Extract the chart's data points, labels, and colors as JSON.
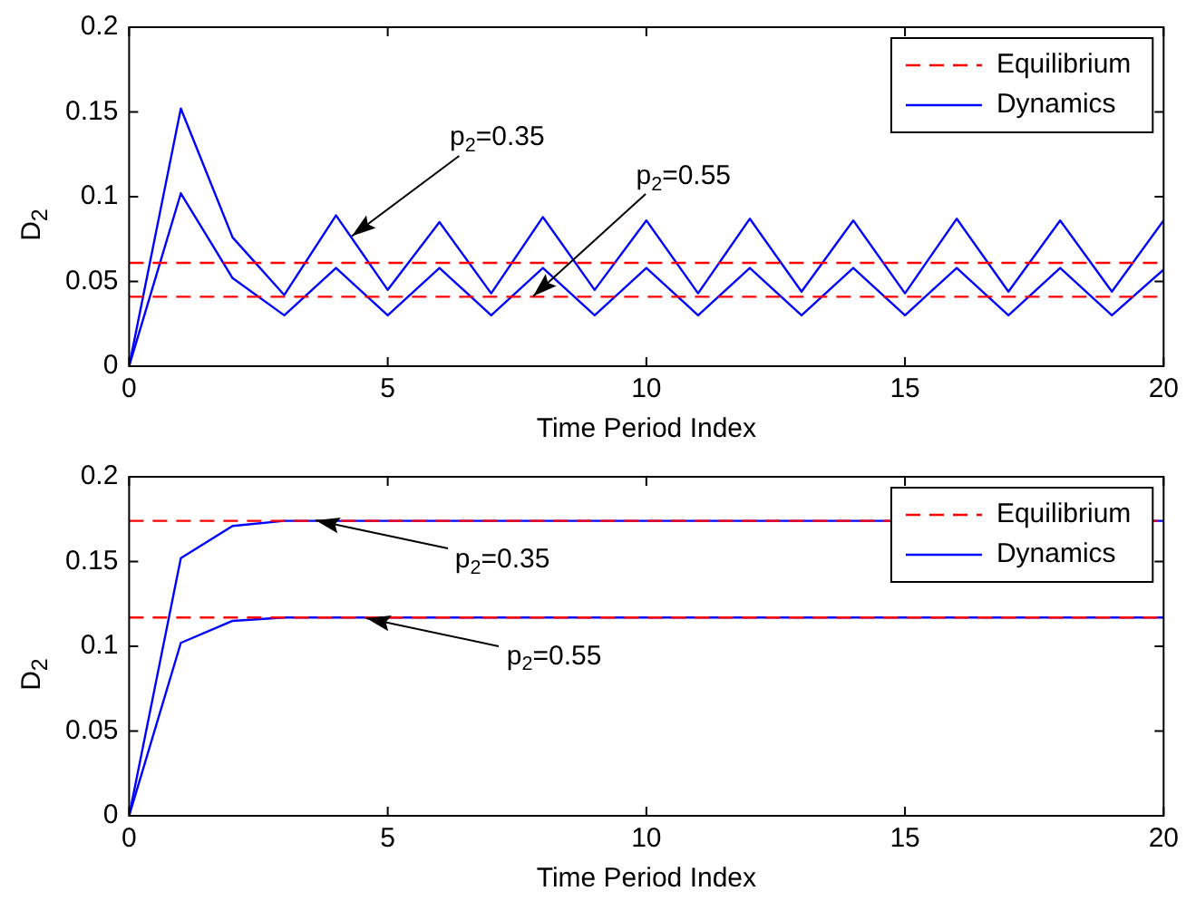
{
  "chart_data": [
    {
      "type": "line",
      "xlabel": "Time Period Index",
      "ylabel": "D$_{2}$",
      "xlim": [
        0,
        20
      ],
      "ylim": [
        0,
        0.2
      ],
      "xticks": [
        0,
        5,
        10,
        15,
        20
      ],
      "yticks": [
        0,
        0.05,
        0.1,
        0.15,
        0.2
      ],
      "grid": false,
      "legend": "top right",
      "marker": "none",
      "series": [
        {
          "name": "Equilibrium",
          "color": "#ff0000",
          "line_style": "dashed",
          "x": [
            0,
            20
          ],
          "values": [
            0.061,
            0.061
          ]
        },
        {
          "color": "#ff0000",
          "line_style": "dashed",
          "x": [
            0,
            20
          ],
          "values": [
            0.041,
            0.041
          ]
        },
        {
          "name": "Dynamics",
          "color": "#0000ff",
          "line_style": "solid",
          "x": [
            0,
            1,
            2,
            3,
            4,
            5,
            6,
            7,
            8,
            9,
            10,
            11,
            12,
            13,
            14,
            15,
            16,
            17,
            18,
            19,
            20
          ],
          "values": [
            0,
            0.152,
            0.076,
            0.042,
            0.089,
            0.045,
            0.085,
            0.043,
            0.088,
            0.045,
            0.086,
            0.043,
            0.087,
            0.044,
            0.086,
            0.043,
            0.087,
            0.044,
            0.086,
            0.044,
            0.086
          ]
        },
        {
          "color": "#0000ff",
          "line_style": "solid",
          "x": [
            0,
            1,
            2,
            3,
            4,
            5,
            6,
            7,
            8,
            9,
            10,
            11,
            12,
            13,
            14,
            15,
            16,
            17,
            18,
            19,
            20
          ],
          "values": [
            0,
            0.102,
            0.052,
            0.03,
            0.058,
            0.03,
            0.058,
            0.03,
            0.058,
            0.03,
            0.058,
            0.03,
            0.058,
            0.03,
            0.058,
            0.03,
            0.058,
            0.03,
            0.058,
            0.03,
            0.057
          ]
        }
      ],
      "annotations": [
        {
          "text": "p$_{2}$=0.35",
          "x": 4.3,
          "y": 0.077
        },
        {
          "text": "p$_{2}$=0.55",
          "x": 7.8,
          "y": 0.041
        }
      ]
    },
    {
      "type": "line",
      "xlabel": "Time Period Index",
      "ylabel": "D$_{2}$",
      "xlim": [
        0,
        20
      ],
      "ylim": [
        0,
        0.2
      ],
      "xticks": [
        0,
        5,
        10,
        15,
        20
      ],
      "yticks": [
        0,
        0.05,
        0.1,
        0.15,
        0.2
      ],
      "grid": false,
      "legend": "top right",
      "marker": "none",
      "series": [
        {
          "name": "Equilibrium",
          "color": "#ff0000",
          "line_style": "dashed",
          "x": [
            0,
            20
          ],
          "values": [
            0.174,
            0.174
          ]
        },
        {
          "color": "#ff0000",
          "line_style": "dashed",
          "x": [
            0,
            20
          ],
          "values": [
            0.117,
            0.117
          ]
        },
        {
          "name": "Dynamics",
          "color": "#0000ff",
          "line_style": "solid",
          "x": [
            0,
            1,
            2,
            3,
            20
          ],
          "values": [
            0,
            0.152,
            0.171,
            0.174,
            0.174
          ]
        },
        {
          "color": "#0000ff",
          "line_style": "solid",
          "x": [
            0,
            1,
            2,
            3,
            20
          ],
          "values": [
            0,
            0.102,
            0.115,
            0.117,
            0.117
          ]
        }
      ],
      "annotations": [
        {
          "text": "p$_{2}$=0.35",
          "x": 3.6,
          "y": 0.174
        },
        {
          "text": "p$_{2}$=0.55",
          "x": 4.6,
          "y": 0.117
        }
      ]
    }
  ]
}
